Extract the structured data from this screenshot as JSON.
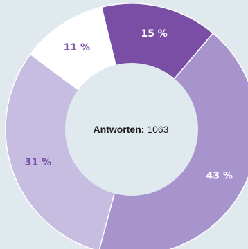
{
  "chart_data": {
    "type": "pie",
    "style": "donut",
    "total_label": "Antworten:",
    "total_value": "1063",
    "slices": [
      {
        "label": "31 %",
        "value": 31,
        "color": "#c7bde0",
        "label_color": "#7b4ea6"
      },
      {
        "label": "11 %",
        "value": 11,
        "color": "#ffffff",
        "label_color": "#7b4ea6"
      },
      {
        "label": "15 %",
        "value": 15,
        "color": "#7a4ea4",
        "label_color": "#ffffff"
      },
      {
        "label": "43 %",
        "value": 43,
        "color": "#a894cc",
        "label_color": "#ffffff"
      }
    ],
    "center_color": "#e0e9ed",
    "background": "#e0e9ed"
  }
}
